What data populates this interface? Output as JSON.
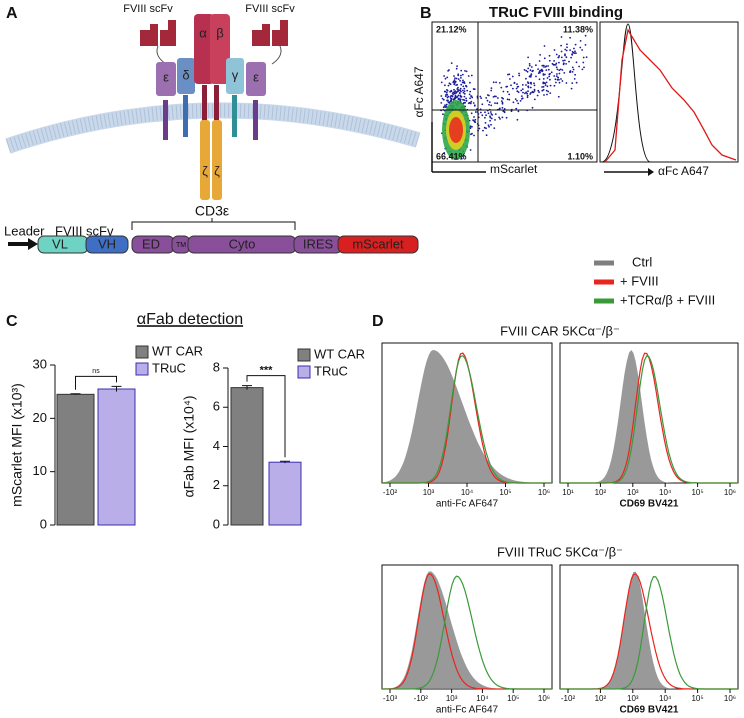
{
  "figure": {
    "panel_labels": [
      "A",
      "B",
      "C",
      "D"
    ],
    "a": {
      "scfv_labels": [
        "FVIII scFv",
        "FVIII scFv"
      ],
      "chains": [
        "ε",
        "δ",
        "α",
        "β",
        "γ",
        "ε",
        "ζ",
        "ζ"
      ],
      "construct_labels": [
        "Leader",
        "FVIII scFv",
        "CD3ε"
      ],
      "segments": [
        "VL",
        "VH",
        "ED",
        "TM",
        "Cyto",
        "IRES",
        "mScarlet"
      ]
    },
    "b": {
      "title": "TRuC FVIII binding",
      "quadrants": [
        "21.12%",
        "11.38%",
        "66.41%",
        "1.10%"
      ],
      "dot_y_label": "αFc A647",
      "dot_x_label": "mScarlet",
      "hist_x_label": "αFc A647"
    },
    "c": {
      "title": "αFab detection"
    },
    "d": {
      "legend": [
        {
          "name": "Ctrl",
          "color": "#7f7f7f"
        },
        {
          "name": "+ FVIII",
          "color": "#e8251f"
        },
        {
          "name": "+TCRα/β + FVIII",
          "color": "#3a9a3a"
        }
      ],
      "titles": [
        "FVIII CAR 5KCα⁻/β⁻",
        "FVIII TRuC 5KCα⁻/β⁻"
      ],
      "x_labels": [
        "anti-Fc AF647",
        "CD69 BV421",
        "anti-Fc AF647",
        "CD69 BV421"
      ],
      "ticks": [
        [
          "-10²",
          "10³",
          "10⁴",
          "10⁵",
          "10⁶"
        ],
        [
          "10¹",
          "10²",
          "10³",
          "10⁴",
          "10⁵",
          "10⁶"
        ],
        [
          "-10³",
          "-10²",
          "10³",
          "10⁴",
          "10⁵",
          "10⁶"
        ],
        [
          "-10²",
          "10²",
          "10³",
          "10⁴",
          "10⁵",
          "10⁶"
        ]
      ]
    }
  },
  "chart_data": [
    {
      "type": "bar",
      "y_label": "mScarlet MFI (x10³)",
      "categories": [
        "WT CAR",
        "TRuC"
      ],
      "values": [
        24.5,
        25.5
      ],
      "errors": [
        0.1,
        0.5
      ],
      "colors": [
        "#808080",
        "#b9aee8"
      ],
      "ylim": [
        0,
        30
      ],
      "yticks": [
        0,
        10,
        20,
        30
      ],
      "significance": "ns"
    },
    {
      "type": "bar",
      "y_label": "αFab MFI (x10⁴)",
      "categories": [
        "WT CAR",
        "TRuC"
      ],
      "values": [
        7.0,
        3.2
      ],
      "errors": [
        0.1,
        0.05
      ],
      "colors": [
        "#808080",
        "#b9aee8"
      ],
      "ylim": [
        0,
        8
      ],
      "yticks": [
        0,
        2,
        4,
        6,
        8
      ],
      "significance": "***"
    }
  ]
}
